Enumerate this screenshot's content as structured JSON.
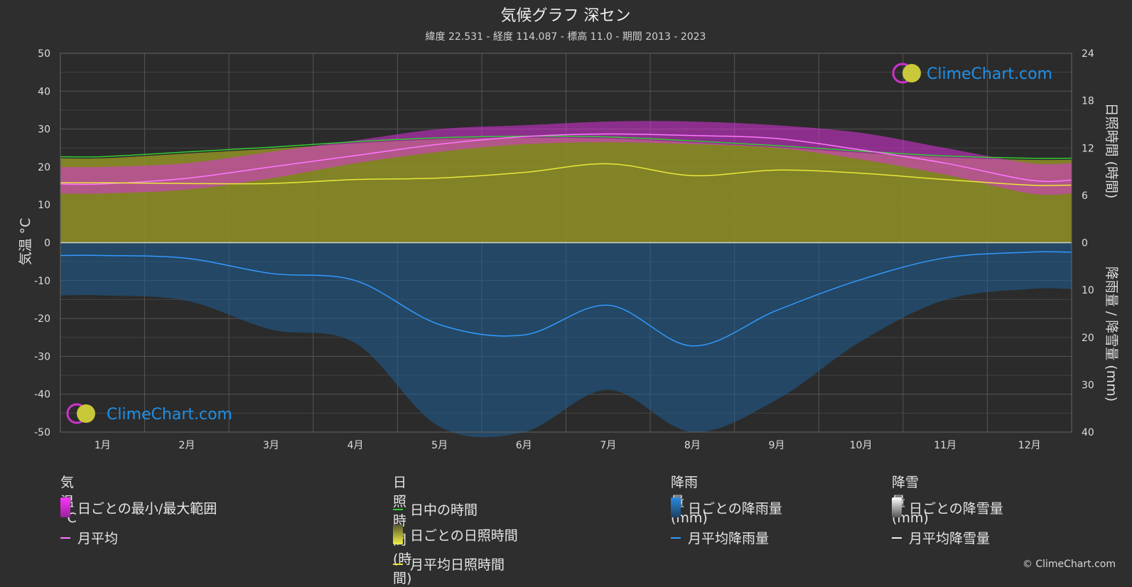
{
  "title": "気候グラフ 深セン",
  "subtitle": "緯度 22.531 - 経度 114.087 - 標高 11.0 - 期間 2013 - 2023",
  "chart_data": {
    "type": "line",
    "categories": [
      "1月",
      "2月",
      "3月",
      "4月",
      "5月",
      "6月",
      "7月",
      "8月",
      "9月",
      "10月",
      "11月",
      "12月"
    ],
    "left_axis": {
      "label": "気温 °C",
      "ylim": [
        -50,
        50
      ],
      "ticks": [
        "50",
        "40",
        "30",
        "20",
        "10",
        "0",
        "-10",
        "-20",
        "-30",
        "-40",
        "-50"
      ]
    },
    "right_axis_top": {
      "label": "日照時間 (時間)",
      "ylim": [
        0,
        24
      ],
      "ticks": [
        "24",
        "18",
        "12",
        "6",
        "0"
      ]
    },
    "right_axis_bottom": {
      "label": "降雨量 / 降雪量 (mm)",
      "ylim": [
        0,
        40
      ],
      "ticks": [
        "10",
        "20",
        "30",
        "40"
      ]
    },
    "grid": true,
    "series": [
      {
        "name": "日中の時間",
        "axis": "sunshine",
        "color": "#33cc33",
        "values": [
          10.9,
          11.5,
          12.1,
          12.8,
          13.3,
          13.5,
          13.4,
          12.9,
          12.3,
          11.6,
          11.0,
          10.7
        ]
      },
      {
        "name": "月平均",
        "axis": "temperature",
        "color": "#ff77ff",
        "values": [
          15.5,
          17.0,
          20.0,
          23.0,
          26.0,
          28.0,
          28.7,
          28.3,
          27.5,
          24.5,
          21.0,
          16.5
        ]
      },
      {
        "name": "月平均日照時間",
        "axis": "sunshine",
        "color": "#e8e83a",
        "values": [
          7.6,
          7.5,
          7.5,
          8.0,
          8.2,
          8.9,
          10.0,
          8.5,
          9.2,
          8.8,
          8.0,
          7.3
        ]
      },
      {
        "name": "月平均降雨量",
        "axis": "precipitation",
        "color": "#3399ff",
        "values": [
          2.7,
          3.3,
          6.5,
          8.0,
          17.3,
          19.5,
          13.2,
          21.8,
          14.3,
          7.8,
          3.2,
          2.0
        ]
      },
      {
        "name": "日ごとの最小/最大範囲",
        "axis": "temperature",
        "color": "#dd33dd",
        "min": [
          13,
          14,
          17,
          21,
          24,
          26,
          26.5,
          26,
          25,
          22,
          18,
          13
        ],
        "max": [
          20,
          21,
          24,
          27,
          30,
          31,
          32,
          32,
          31,
          29,
          25,
          21
        ]
      }
    ]
  },
  "legend": {
    "temp_title": "気温 °C",
    "temp_range": "日ごとの最小/最大範囲",
    "temp_mean": "月平均",
    "sun_title": "日照時間 (時間)",
    "sun_daylight": "日中の時間",
    "sun_daily": "日ごとの日照時間",
    "sun_mean": "月平均日照時間",
    "rain_title": "降雨量 (mm)",
    "rain_daily": "日ごとの降雨量",
    "rain_mean": "月平均降雨量",
    "snow_title": "降雪量 (mm)",
    "snow_daily": "日ごとの降雪量",
    "snow_mean": "月平均降雪量"
  },
  "brand": {
    "logo_text": "ClimeChart.com",
    "copyright": "© ClimeChart.com"
  },
  "colors": {
    "background": "#2e2e2e",
    "temperature_band": "#dd33dd",
    "sunshine_fill": "#9a9a2a",
    "rain_fill": "#1d5f93",
    "brand_blue": "#1e90e8"
  }
}
